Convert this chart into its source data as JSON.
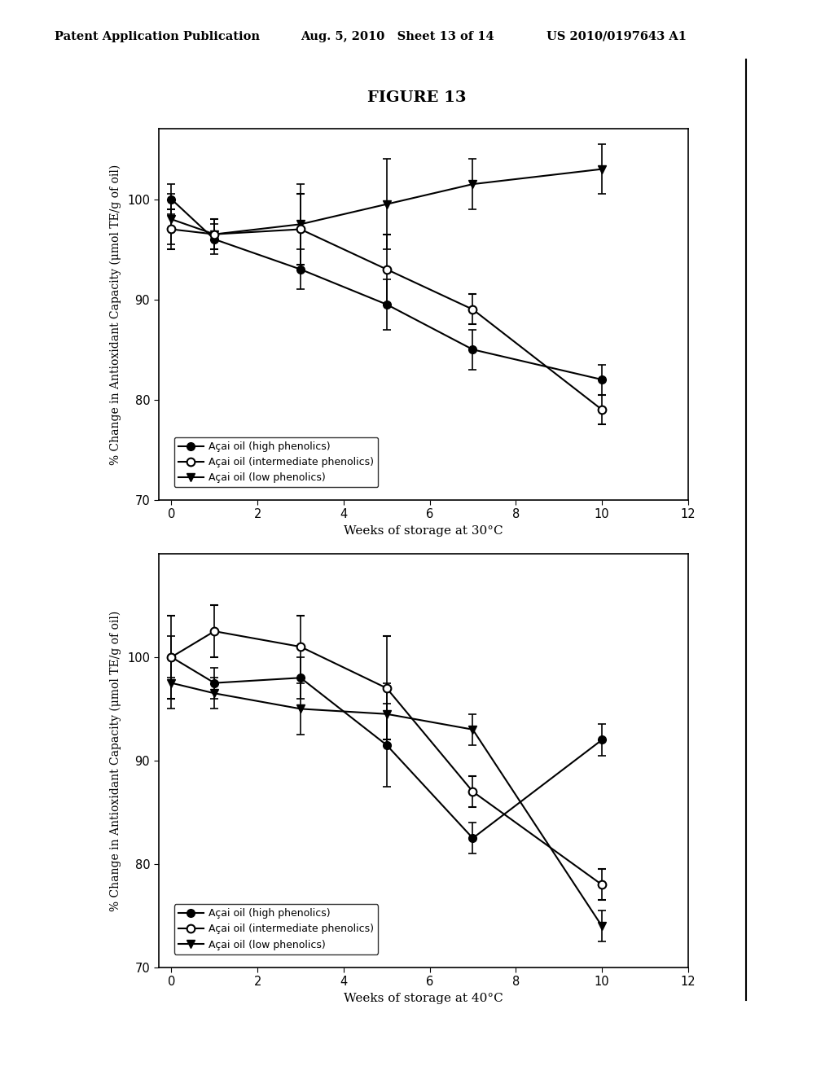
{
  "title": "FIGURE 13",
  "header_left": "Patent Application Publication",
  "header_center": "Aug. 5, 2010   Sheet 13 of 14",
  "header_right": "US 2010/0197643 A1",
  "top_chart": {
    "xlabel": "Weeks of storage at 30°C",
    "ylabel": "% Change in Antioxidant Capacity (μmol TE/g of oil)",
    "ylim": [
      70,
      107
    ],
    "yticks": [
      70,
      80,
      90,
      100
    ],
    "xlim": [
      -0.3,
      12
    ],
    "xticks": [
      0,
      2,
      4,
      6,
      8,
      10,
      12
    ],
    "weeks": [
      0,
      1,
      3,
      5,
      7,
      10
    ],
    "high_phenolics": [
      100.0,
      96.0,
      93.0,
      89.5,
      85.0,
      82.0
    ],
    "high_err": [
      1.5,
      1.5,
      2.0,
      2.5,
      2.0,
      1.5
    ],
    "intermediate_phenolics": [
      97.0,
      96.5,
      97.0,
      93.0,
      89.0,
      79.0
    ],
    "inter_err": [
      2.0,
      1.5,
      3.5,
      3.5,
      1.5,
      1.5
    ],
    "low_phenolics": [
      98.0,
      96.5,
      97.5,
      99.5,
      101.5,
      103.0
    ],
    "low_err": [
      2.5,
      1.5,
      4.0,
      4.5,
      2.5,
      2.5
    ]
  },
  "bottom_chart": {
    "xlabel": "Weeks of storage at 40°C",
    "ylabel": "% Change in Antioxidant Capacity (μmol TE/g of oil)",
    "ylim": [
      70,
      110
    ],
    "yticks": [
      70,
      80,
      90,
      100
    ],
    "xlim": [
      -0.3,
      12
    ],
    "xticks": [
      0,
      2,
      4,
      6,
      8,
      10,
      12
    ],
    "weeks": [
      0,
      1,
      3,
      5,
      7,
      10
    ],
    "high_phenolics": [
      100.0,
      97.5,
      98.0,
      91.5,
      82.5,
      92.0
    ],
    "high_err": [
      2.0,
      1.5,
      2.0,
      4.0,
      1.5,
      1.5
    ],
    "intermediate_phenolics": [
      100.0,
      102.5,
      101.0,
      97.0,
      87.0,
      78.0
    ],
    "inter_err": [
      4.0,
      2.5,
      3.0,
      5.0,
      1.5,
      1.5
    ],
    "low_phenolics": [
      97.5,
      96.5,
      95.0,
      94.5,
      93.0,
      74.0
    ],
    "low_err": [
      2.5,
      1.5,
      2.5,
      3.0,
      1.5,
      1.5
    ]
  },
  "legend_labels": [
    "Açai oil (high phenolics)",
    "Açai oil (intermediate phenolics)",
    "Açai oil (low phenolics)"
  ],
  "line_color": "#000000",
  "background_color": "#ffffff",
  "font_family": "DejaVu Serif"
}
